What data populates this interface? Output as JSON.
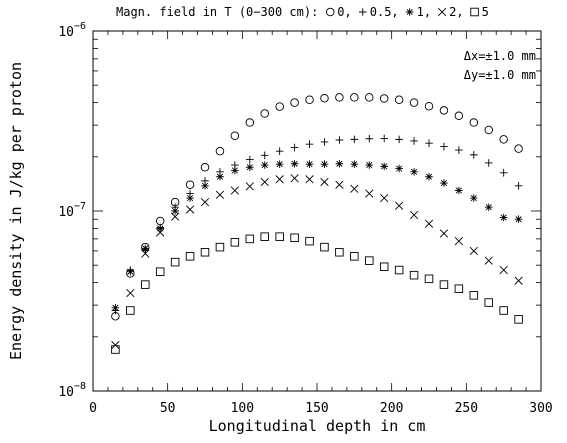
{
  "chart_data": {
    "type": "scatter",
    "title": "Magn. field in T (0−300 cm):",
    "xlabel": "Longitudinal depth in cm",
    "ylabel": "Energy density in J/kg per proton",
    "xlim": [
      0,
      300
    ],
    "ylim": [
      1e-08,
      1e-06
    ],
    "yscale": "log",
    "grid": false,
    "legend_placement": "top (in title line)",
    "x_ticks": [
      "0",
      "50",
      "100",
      "150",
      "200",
      "250",
      "300"
    ],
    "y_ticks": [
      {
        "value": 1e-08,
        "base": "10",
        "exp": "−8"
      },
      {
        "value": 1e-07,
        "base": "10",
        "exp": "−7"
      },
      {
        "value": 1e-06,
        "base": "10",
        "exp": "−6"
      }
    ],
    "annotations": [
      "Δx=±1.0 mm",
      "Δy=±1.0 mm"
    ],
    "x": [
      15,
      25,
      35,
      45,
      55,
      65,
      75,
      85,
      95,
      105,
      115,
      125,
      135,
      145,
      155,
      165,
      175,
      185,
      195,
      205,
      215,
      225,
      235,
      245,
      255,
      265,
      275,
      285
    ],
    "series": [
      {
        "name": "0",
        "marker": "circle",
        "values": [
          2.6e-08,
          4.5e-08,
          6.3e-08,
          8.8e-08,
          1.12e-07,
          1.4e-07,
          1.75e-07,
          2.15e-07,
          2.62e-07,
          3.1e-07,
          3.48e-07,
          3.8e-07,
          4e-07,
          4.15e-07,
          4.23e-07,
          4.28e-07,
          4.28e-07,
          4.28e-07,
          4.22e-07,
          4.15e-07,
          4e-07,
          3.82e-07,
          3.62e-07,
          3.38e-07,
          3.1e-07,
          2.82e-07,
          2.5e-07,
          2.22e-07
        ]
      },
      {
        "name": "0.5",
        "marker": "plus",
        "values": [
          2.8e-08,
          4.7e-08,
          6.1e-08,
          8.1e-08,
          1.05e-07,
          1.25e-07,
          1.47e-07,
          1.65e-07,
          1.8e-07,
          1.93e-07,
          2.04e-07,
          2.15e-07,
          2.25e-07,
          2.35e-07,
          2.42e-07,
          2.48e-07,
          2.5e-07,
          2.52e-07,
          2.53e-07,
          2.5e-07,
          2.45e-07,
          2.38e-07,
          2.28e-07,
          2.18e-07,
          2.05e-07,
          1.85e-07,
          1.63e-07,
          1.38e-07
        ]
      },
      {
        "name": "1",
        "marker": "asterisk",
        "values": [
          2.9e-08,
          4.6e-08,
          6.2e-08,
          8e-08,
          1e-07,
          1.18e-07,
          1.38e-07,
          1.55e-07,
          1.68e-07,
          1.75e-07,
          1.8e-07,
          1.82e-07,
          1.83e-07,
          1.82e-07,
          1.82e-07,
          1.83e-07,
          1.82e-07,
          1.8e-07,
          1.77e-07,
          1.72e-07,
          1.65e-07,
          1.55e-07,
          1.43e-07,
          1.3e-07,
          1.18e-07,
          1.05e-07,
          9.2e-08,
          9e-08
        ]
      },
      {
        "name": "2",
        "marker": "cross",
        "values": [
          1.8e-08,
          3.5e-08,
          5.8e-08,
          7.6e-08,
          9.3e-08,
          1.02e-07,
          1.12e-07,
          1.23e-07,
          1.3e-07,
          1.37e-07,
          1.45e-07,
          1.5e-07,
          1.52e-07,
          1.5e-07,
          1.45e-07,
          1.4e-07,
          1.33e-07,
          1.25e-07,
          1.18e-07,
          1.07e-07,
          9.5e-08,
          8.5e-08,
          7.5e-08,
          6.8e-08,
          6e-08,
          5.3e-08,
          4.7e-08,
          4.1e-08
        ]
      },
      {
        "name": "5",
        "marker": "square",
        "values": [
          1.7e-08,
          2.8e-08,
          3.9e-08,
          4.6e-08,
          5.2e-08,
          5.6e-08,
          5.9e-08,
          6.3e-08,
          6.7e-08,
          7e-08,
          7.2e-08,
          7.2e-08,
          7.1e-08,
          6.8e-08,
          6.3e-08,
          5.9e-08,
          5.6e-08,
          5.3e-08,
          4.9e-08,
          4.7e-08,
          4.4e-08,
          4.2e-08,
          3.9e-08,
          3.7e-08,
          3.4e-08,
          3.1e-08,
          2.8e-08,
          2.5e-08
        ]
      }
    ]
  }
}
